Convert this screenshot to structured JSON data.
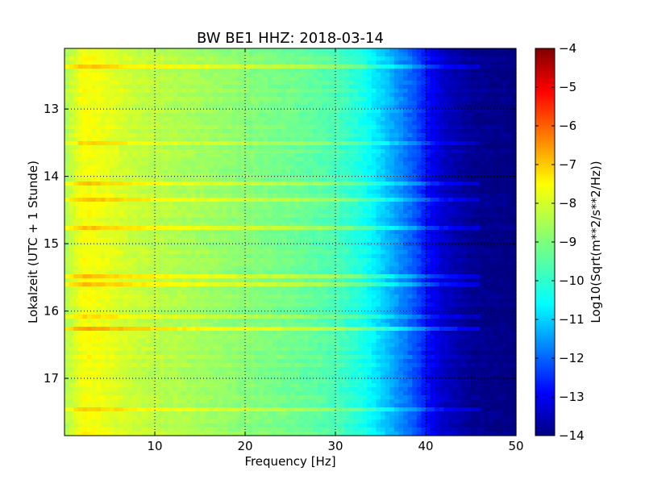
{
  "chart_data": {
    "type": "heatmap",
    "title": "BW BE1 HHZ: 2018-03-14",
    "xlabel": "Frequency [Hz]",
    "ylabel": "Lokalzeit (UTC + 1 Stunde)",
    "xlim": [
      0,
      50
    ],
    "ylim": [
      12.1,
      17.85
    ],
    "y_inverted": true,
    "grid": true,
    "x_ticks": [
      10,
      20,
      30,
      40,
      50
    ],
    "x_tick_labels": [
      "10",
      "20",
      "30",
      "40",
      "50"
    ],
    "y_ticks": [
      13,
      14,
      15,
      16,
      17
    ],
    "y_tick_labels": [
      "13",
      "14",
      "15",
      "16",
      "17"
    ],
    "colorbar": {
      "label": "Log10(Sqrt(m**2/s**2/Hz))",
      "colormap": "jet",
      "range": [
        -14,
        -4
      ],
      "ticks": [
        -4,
        -5,
        -6,
        -7,
        -8,
        -9,
        -10,
        -11,
        -12,
        -13,
        -14
      ],
      "tick_labels": [
        "−4",
        "−5",
        "−6",
        "−7",
        "−8",
        "−9",
        "−10",
        "−11",
        "−12",
        "−13",
        "−14"
      ]
    },
    "spectral_profile": {
      "frequency_hz": [
        0,
        2,
        4,
        8,
        14,
        20,
        26,
        30,
        33,
        35,
        37,
        39,
        40.5,
        42,
        45,
        50
      ],
      "log_amplitude": [
        -8.6,
        -7.8,
        -7.9,
        -8.3,
        -8.6,
        -8.9,
        -9.2,
        -9.5,
        -10.0,
        -10.6,
        -11.3,
        -12.0,
        -12.8,
        -13.3,
        -13.8,
        -14.0
      ]
    },
    "elevated_noise_bands": [
      {
        "time_hour": 12.35,
        "delta_log": 0.6
      },
      {
        "time_hour": 13.52,
        "delta_log": 0.6
      },
      {
        "time_hour": 14.1,
        "delta_log": 0.7
      },
      {
        "time_hour": 14.35,
        "delta_log": 0.7
      },
      {
        "time_hour": 14.75,
        "delta_log": 0.6
      },
      {
        "time_hour": 15.5,
        "delta_log": 0.8
      },
      {
        "time_hour": 15.62,
        "delta_log": 0.7
      },
      {
        "time_hour": 16.1,
        "delta_log": 0.5
      },
      {
        "time_hour": 16.25,
        "delta_log": 0.9
      },
      {
        "time_hour": 17.45,
        "delta_log": 0.7
      }
    ]
  }
}
